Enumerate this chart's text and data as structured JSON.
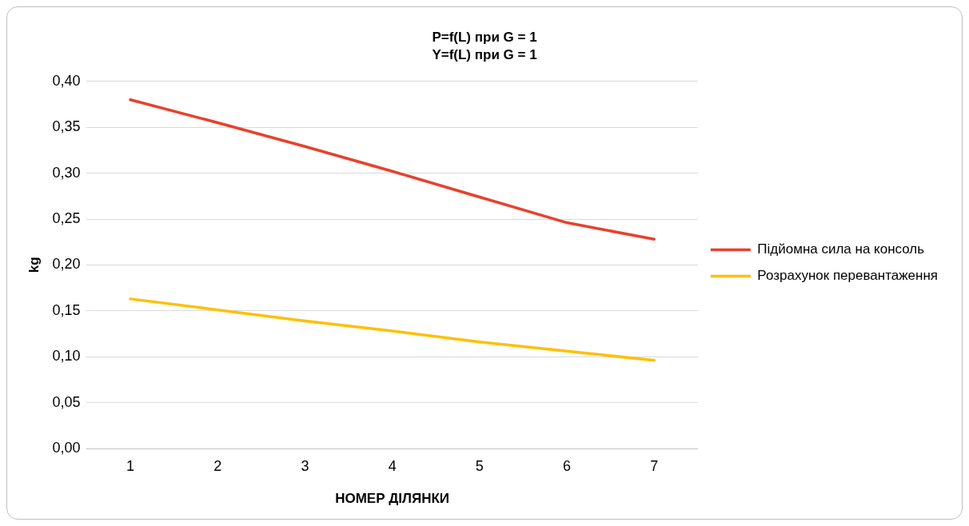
{
  "chart_data": {
    "type": "line",
    "title": "P=f(L) при G = 1",
    "subtitle": "Y=f(L) при G = 1",
    "xlabel": "НОМЕР ДІЛЯНКИ",
    "ylabel": "kg",
    "categories": [
      "1",
      "2",
      "3",
      "4",
      "5",
      "6",
      "7"
    ],
    "series": [
      {
        "name": "Підйомна сила на консоль",
        "color": "#e8412c",
        "values": [
          0.38,
          0.355,
          0.329,
          0.302,
          0.274,
          0.246,
          0.228
        ]
      },
      {
        "name": "Розрахунок перевантаження",
        "color": "#ffc000",
        "values": [
          0.163,
          0.151,
          0.139,
          0.128,
          0.116,
          0.106,
          0.096
        ]
      }
    ],
    "ylim": [
      0,
      0.4
    ],
    "yticks": [
      {
        "value": 0,
        "label": "0,00"
      },
      {
        "value": 0.05,
        "label": "0,05"
      },
      {
        "value": 0.1,
        "label": "0,10"
      },
      {
        "value": 0.15,
        "label": "0,15"
      },
      {
        "value": 0.2,
        "label": "0,20"
      },
      {
        "value": 0.25,
        "label": "0,25"
      },
      {
        "value": 0.3,
        "label": "0,30"
      },
      {
        "value": 0.35,
        "label": "0,35"
      },
      {
        "value": 0.4,
        "label": "0,40"
      }
    ],
    "grid": "y",
    "legend": "right",
    "marker": "none",
    "line_style": "solid"
  }
}
